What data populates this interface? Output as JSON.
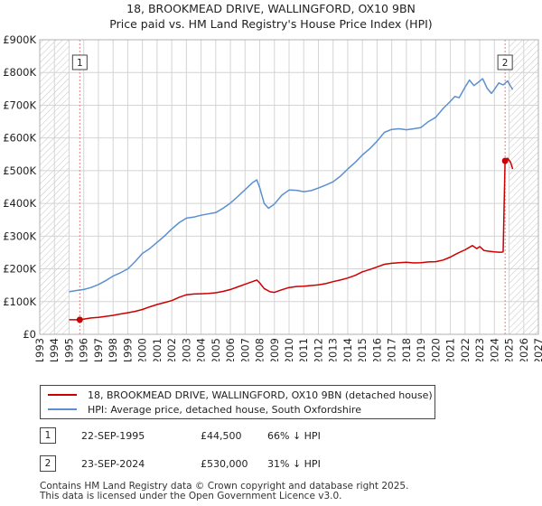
{
  "header": {
    "title": "18, BROOKMEAD DRIVE, WALLINGFORD, OX10 9BN",
    "subtitle": "Price paid vs. HM Land Registry's House Price Index (HPI)"
  },
  "colors": {
    "property": "#cc0000",
    "hpi": "#5b8fd0",
    "grid": "#d4d4d4",
    "hatch": "#bdbdbd",
    "marker_line": "#e08080"
  },
  "chart_data": {
    "type": "line",
    "title": "18, BROOKMEAD DRIVE, WALLINGFORD, OX10 9BN",
    "subtitle": "Price paid vs. HM Land Registry's House Price Index (HPI)",
    "xlabel": "",
    "ylabel": "",
    "xlim": [
      1993,
      2027
    ],
    "ylim": [
      0,
      900000
    ],
    "x_ticks": [
      1993,
      1994,
      1995,
      1996,
      1997,
      1998,
      1999,
      2000,
      2001,
      2002,
      2003,
      2004,
      2005,
      2006,
      2007,
      2008,
      2009,
      2010,
      2011,
      2012,
      2013,
      2014,
      2015,
      2016,
      2017,
      2018,
      2019,
      2020,
      2021,
      2022,
      2023,
      2024,
      2025,
      2026,
      2027
    ],
    "y_ticks": [
      0,
      100000,
      200000,
      300000,
      400000,
      500000,
      600000,
      700000,
      800000,
      900000
    ],
    "y_tick_labels": [
      "£0",
      "£100K",
      "£200K",
      "£300K",
      "£400K",
      "£500K",
      "£600K",
      "£700K",
      "£800K",
      "£900K"
    ],
    "grid": true,
    "hatched_regions": [
      [
        1993,
        1995.0
      ],
      [
        2025.0,
        2027
      ]
    ],
    "series": [
      {
        "name": "18, BROOKMEAD DRIVE, WALLINGFORD, OX10 9BN (detached house)",
        "color": "#cc0000",
        "x": [
          1995.0,
          1995.73,
          1996.5,
          1997.0,
          1997.5,
          1998.0,
          1998.5,
          1999.0,
          1999.5,
          2000.0,
          2000.5,
          2001.0,
          2001.5,
          2002.0,
          2002.5,
          2003.0,
          2003.5,
          2004.0,
          2004.5,
          2005.0,
          2005.5,
          2006.0,
          2006.5,
          2007.0,
          2007.5,
          2007.8,
          2008.0,
          2008.3,
          2008.7,
          2009.0,
          2009.5,
          2010.0,
          2010.5,
          2011.0,
          2011.5,
          2012.0,
          2012.5,
          2013.0,
          2013.5,
          2014.0,
          2014.5,
          2015.0,
          2015.5,
          2016.0,
          2016.5,
          2017.0,
          2017.5,
          2018.0,
          2018.5,
          2019.0,
          2019.5,
          2020.0,
          2020.5,
          2021.0,
          2021.5,
          2022.0,
          2022.5,
          2022.8,
          2023.0,
          2023.3,
          2023.6,
          2024.0,
          2024.3,
          2024.5,
          2024.6,
          2024.73,
          2024.9,
          2025.1,
          2025.25
        ],
        "y": [
          44500,
          44500,
          50000,
          52000,
          55000,
          58000,
          62000,
          66000,
          70000,
          76000,
          84000,
          91000,
          97000,
          103000,
          113000,
          121000,
          123000,
          124000,
          125000,
          127000,
          131000,
          137000,
          145000,
          153000,
          161000,
          166000,
          157000,
          140000,
          130000,
          128000,
          136000,
          143000,
          146000,
          147000,
          149000,
          151000,
          155000,
          161000,
          166000,
          172000,
          180000,
          191000,
          198000,
          206000,
          214000,
          217000,
          219000,
          220000,
          218000,
          219000,
          221000,
          222000,
          227000,
          236000,
          248000,
          258000,
          271000,
          262000,
          268000,
          256000,
          254000,
          252000,
          251000,
          251000,
          252000,
          530000,
          538000,
          526000,
          505000
        ]
      },
      {
        "name": "HPI: Average price, detached house, South Oxfordshire",
        "color": "#5b8fd0",
        "x": [
          1995.0,
          1995.5,
          1996.0,
          1996.5,
          1997.0,
          1997.5,
          1998.0,
          1998.5,
          1999.0,
          1999.5,
          2000.0,
          2000.5,
          2001.0,
          2001.5,
          2002.0,
          2002.5,
          2003.0,
          2003.5,
          2004.0,
          2004.5,
          2005.0,
          2005.5,
          2006.0,
          2006.5,
          2007.0,
          2007.5,
          2007.8,
          2008.0,
          2008.3,
          2008.6,
          2009.0,
          2009.5,
          2010.0,
          2010.5,
          2011.0,
          2011.5,
          2012.0,
          2012.5,
          2013.0,
          2013.5,
          2014.0,
          2014.5,
          2015.0,
          2015.5,
          2016.0,
          2016.5,
          2017.0,
          2017.5,
          2018.0,
          2018.5,
          2019.0,
          2019.5,
          2020.0,
          2020.5,
          2021.0,
          2021.3,
          2021.6,
          2022.0,
          2022.3,
          2022.6,
          2022.9,
          2023.2,
          2023.5,
          2023.8,
          2024.0,
          2024.3,
          2024.6,
          2024.9,
          2025.1,
          2025.25
        ],
        "y": [
          130000,
          134000,
          137000,
          143000,
          152000,
          164000,
          178000,
          188000,
          200000,
          222000,
          247000,
          262000,
          281000,
          300000,
          322000,
          341000,
          355000,
          358000,
          364000,
          368000,
          372000,
          385000,
          401000,
          421000,
          442000,
          463000,
          472000,
          448000,
          400000,
          385000,
          398000,
          425000,
          441000,
          440000,
          436000,
          439000,
          447000,
          456000,
          466000,
          483000,
          505000,
          525000,
          548000,
          567000,
          590000,
          617000,
          626000,
          628000,
          625000,
          628000,
          632000,
          650000,
          663000,
          690000,
          712000,
          727000,
          723000,
          755000,
          777000,
          760000,
          770000,
          781000,
          752000,
          736000,
          748000,
          768000,
          762000,
          774000,
          758000,
          748000
        ]
      }
    ],
    "annotations": [
      {
        "label": "1",
        "x": 1995.73,
        "y": 44500
      },
      {
        "label": "2",
        "x": 2024.73,
        "y": 530000
      }
    ]
  },
  "legend": {
    "property_label": "18, BROOKMEAD DRIVE, WALLINGFORD, OX10 9BN (detached house)",
    "hpi_label": "HPI: Average price, detached house, South Oxfordshire"
  },
  "transactions": [
    {
      "num": "1",
      "date": "22-SEP-1995",
      "price": "£44,500",
      "hpi": "66% ↓ HPI"
    },
    {
      "num": "2",
      "date": "23-SEP-2024",
      "price": "£530,000",
      "hpi": "31% ↓ HPI"
    }
  ],
  "footer": {
    "line1": "Contains HM Land Registry data © Crown copyright and database right 2025.",
    "line2": "This data is licensed under the Open Government Licence v3.0."
  }
}
